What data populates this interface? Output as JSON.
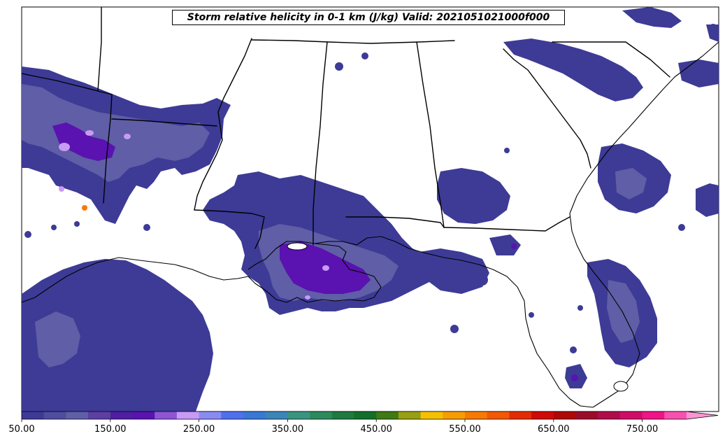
{
  "title": "Storm relative helicity in 0-1 km (J/kg) Valid: 2021051021000f000",
  "colorbar": {
    "min": 50,
    "max": 800,
    "step": 25,
    "extend": "max",
    "tick_labels": [
      "50.00",
      "150.00",
      "250.00",
      "350.00",
      "450.00",
      "550.00",
      "650.00",
      "750.00"
    ],
    "tick_values": [
      50,
      150,
      250,
      350,
      450,
      550,
      650,
      750
    ],
    "colors": [
      "#3d3b96",
      "#4e4d9e",
      "#5f5ea6",
      "#5c3fa2",
      "#4f1ea2",
      "#5a12b0",
      "#8e55d6",
      "#c79af5",
      "#8a8bf2",
      "#4f70ee",
      "#3a78d6",
      "#3a86b8",
      "#3a9482",
      "#2d8a5c",
      "#1e7a40",
      "#12702a",
      "#3f7a14",
      "#96a010",
      "#f4c000",
      "#f89c00",
      "#f87a00",
      "#f45800",
      "#e42c00",
      "#d00808",
      "#b00808",
      "#9c0c28",
      "#b00c4c",
      "#d00c68",
      "#f01488",
      "#f850b0",
      "#ff94d4"
    ]
  },
  "map": {
    "base_color": "#3d3b96",
    "mid_color": "#5f5ea6",
    "high_color": "#5a12b0",
    "peak_color": "#c79af5",
    "hotspot_color": "#f87a00",
    "background": "#ffffff",
    "boundary_color": "#000000"
  }
}
